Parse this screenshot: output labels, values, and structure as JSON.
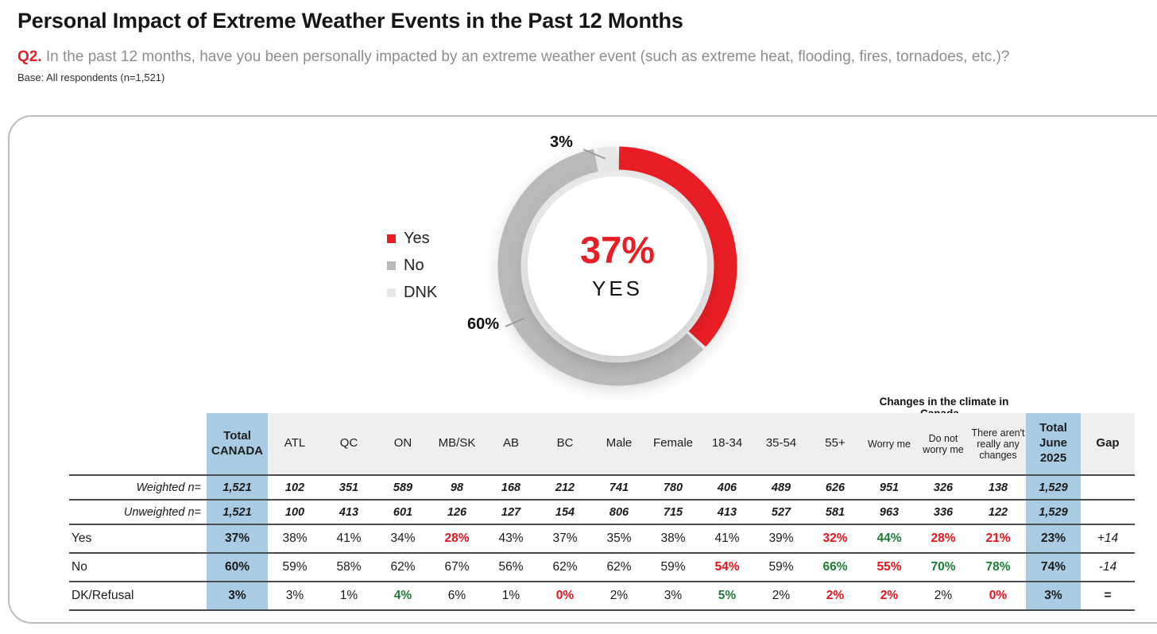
{
  "header": {
    "title": "Personal Impact of Extreme Weather Events in the Past 12 Months",
    "question_label": "Q2.",
    "question_text": " In the past 12 months, have you been personally impacted by an extreme weather event (such as extreme heat, flooding, fires, tornadoes, etc.)?",
    "base_note": "Base: All respondents (n=1,521)"
  },
  "colors": {
    "accent_red": "#e81e25",
    "significance_red": "#e8131a",
    "significance_green": "#1d7c34",
    "highlight_blue": "#a9cce4"
  },
  "chart_data": {
    "type": "pie",
    "subtype": "donut",
    "center_value": "37%",
    "center_label": "YES",
    "legend_position": "left",
    "slices": [
      {
        "label": "Yes",
        "value": 37,
        "color": "#e81e25"
      },
      {
        "label": "No",
        "value": 60,
        "color": "#b9b9b9"
      },
      {
        "label": "DNK",
        "value": 3,
        "color": "#e7e7e7"
      }
    ],
    "callout_dnk": "3%",
    "callout_no": "60%"
  },
  "table": {
    "group_header": "Changes in the climate in Canada...",
    "columns": [
      {
        "label": "Total CANADA",
        "blue": true,
        "bold": true
      },
      {
        "label": "ATL"
      },
      {
        "label": "QC"
      },
      {
        "label": "ON"
      },
      {
        "label": "MB/SK"
      },
      {
        "label": "AB"
      },
      {
        "label": "BC"
      },
      {
        "label": "Male"
      },
      {
        "label": "Female"
      },
      {
        "label": "18-34"
      },
      {
        "label": "35-54"
      },
      {
        "label": "55+"
      },
      {
        "label": "Worry me",
        "small": true
      },
      {
        "label": "Do not worry me",
        "small": true
      },
      {
        "label": "There aren't really any changes",
        "small": true
      },
      {
        "label": "Total June 2025",
        "blue": true,
        "bold": true
      },
      {
        "label": "Gap",
        "bold": true
      }
    ],
    "rows": [
      {
        "label": "Weighted n=",
        "kind": "n",
        "cells": [
          "1,521",
          "102",
          "351",
          "589",
          "98",
          "168",
          "212",
          "741",
          "780",
          "406",
          "489",
          "626",
          "951",
          "326",
          "138",
          "1,529",
          ""
        ]
      },
      {
        "label": "Unweighted n=",
        "kind": "n",
        "cells": [
          "1,521",
          "100",
          "413",
          "601",
          "126",
          "127",
          "154",
          "806",
          "715",
          "413",
          "527",
          "581",
          "963",
          "336",
          "122",
          "1,529",
          ""
        ]
      },
      {
        "label": "Yes",
        "kind": "data",
        "cells": [
          "37%",
          "38%",
          "41%",
          "34%",
          {
            "v": "28%",
            "c": "red"
          },
          "43%",
          "37%",
          "35%",
          "38%",
          "41%",
          "39%",
          {
            "v": "32%",
            "c": "red"
          },
          {
            "v": "44%",
            "c": "green"
          },
          {
            "v": "28%",
            "c": "red"
          },
          {
            "v": "21%",
            "c": "red"
          },
          "23%",
          {
            "v": "+14",
            "s": "gap"
          }
        ]
      },
      {
        "label": "No",
        "kind": "data",
        "cells": [
          "60%",
          "59%",
          "58%",
          "62%",
          "67%",
          "56%",
          "62%",
          "62%",
          "59%",
          {
            "v": "54%",
            "c": "red"
          },
          "59%",
          {
            "v": "66%",
            "c": "green"
          },
          {
            "v": "55%",
            "c": "red"
          },
          {
            "v": "70%",
            "c": "green"
          },
          {
            "v": "78%",
            "c": "green"
          },
          "74%",
          {
            "v": "-14",
            "s": "gap"
          }
        ]
      },
      {
        "label": "DK/Refusal",
        "kind": "data",
        "cells": [
          "3%",
          "3%",
          "1%",
          {
            "v": "4%",
            "c": "green"
          },
          "6%",
          "1%",
          {
            "v": "0%",
            "c": "red"
          },
          "2%",
          "3%",
          {
            "v": "5%",
            "c": "green"
          },
          "2%",
          {
            "v": "2%",
            "c": "red"
          },
          {
            "v": "2%",
            "c": "red"
          },
          "2%",
          {
            "v": "0%",
            "c": "red"
          },
          "3%",
          {
            "v": "=",
            "s": "gap-eq"
          }
        ]
      }
    ]
  }
}
